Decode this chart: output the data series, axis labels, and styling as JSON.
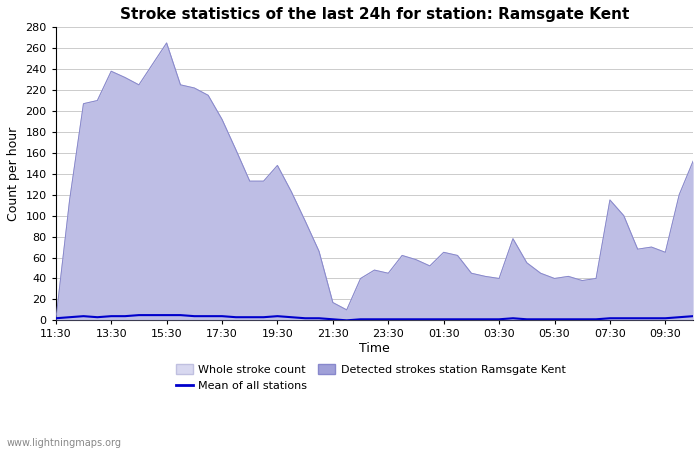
{
  "title": "Stroke statistics of the last 24h for station: Ramsgate Kent",
  "xlabel": "Time",
  "ylabel": "Count per hour",
  "watermark": "www.lightningmaps.org",
  "x_ticks": [
    "11:30",
    "13:30",
    "15:30",
    "17:30",
    "19:30",
    "21:30",
    "23:30",
    "01:30",
    "03:30",
    "05:30",
    "07:30",
    "09:30"
  ],
  "ylim": [
    0,
    280
  ],
  "yticks": [
    0,
    20,
    40,
    60,
    80,
    100,
    120,
    140,
    160,
    180,
    200,
    220,
    240,
    260,
    280
  ],
  "whole_stroke": [
    0,
    115,
    207,
    210,
    238,
    232,
    225,
    245,
    265,
    225,
    222,
    215,
    192,
    163,
    133,
    133,
    148,
    123,
    95,
    66,
    17,
    10,
    40,
    48,
    45,
    62,
    58,
    52,
    65,
    62,
    45,
    42,
    40,
    78,
    55,
    45,
    40,
    42,
    38,
    40,
    115,
    100,
    68,
    70,
    65,
    120,
    152
  ],
  "detected_stroke": [
    0,
    115,
    207,
    210,
    238,
    232,
    225,
    245,
    265,
    225,
    222,
    215,
    192,
    163,
    133,
    133,
    148,
    123,
    95,
    66,
    17,
    10,
    40,
    48,
    45,
    62,
    58,
    52,
    65,
    62,
    45,
    42,
    40,
    78,
    55,
    45,
    40,
    42,
    38,
    40,
    115,
    100,
    68,
    70,
    65,
    120,
    152
  ],
  "mean_all": [
    2,
    3,
    4,
    3,
    4,
    4,
    5,
    5,
    5,
    5,
    4,
    4,
    4,
    3,
    3,
    3,
    4,
    3,
    2,
    2,
    1,
    0,
    1,
    1,
    1,
    1,
    1,
    1,
    1,
    1,
    1,
    1,
    1,
    2,
    1,
    1,
    1,
    1,
    1,
    1,
    2,
    2,
    2,
    2,
    2,
    3,
    4
  ],
  "whole_fill_color": "#d8d8f0",
  "whole_edge_color": "#c0c0e0",
  "detected_fill_color": "#a0a0d8",
  "detected_edge_color": "#8888cc",
  "mean_line_color": "#0000cc",
  "background_color": "#ffffff",
  "grid_color": "#cccccc",
  "title_fontsize": 11,
  "axis_fontsize": 8,
  "label_fontsize": 9
}
